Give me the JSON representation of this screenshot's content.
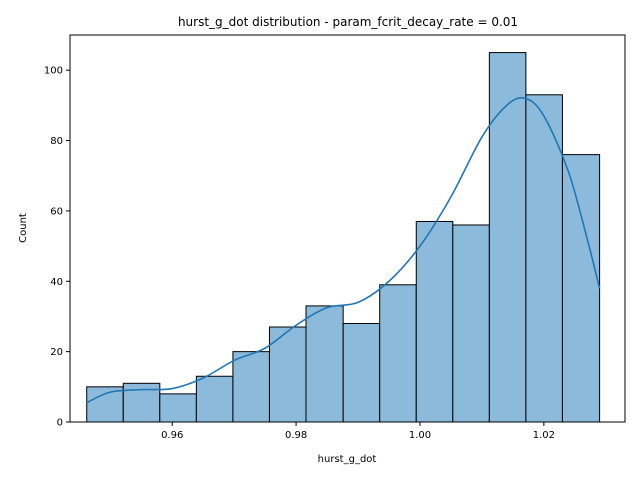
{
  "chart_data": {
    "type": "bar",
    "title": "hurst_g_dot distribution - param_fcrit_decay_rate = 0.01",
    "xlabel": "hurst_g_dot",
    "ylabel": "Count",
    "xlim": [
      0.9435,
      1.0331
    ],
    "ylim": [
      0,
      110
    ],
    "x_ticks": [
      0.96,
      0.98,
      1.0,
      1.02
    ],
    "x_tick_labels": [
      "0.96",
      "0.98",
      "1.00",
      "1.02"
    ],
    "y_ticks": [
      0,
      20,
      40,
      60,
      80,
      100
    ],
    "y_tick_labels": [
      "0",
      "20",
      "40",
      "60",
      "80",
      "100"
    ],
    "bin_edges": [
      0.9462,
      0.9521,
      0.958,
      0.9639,
      0.9698,
      0.9757,
      0.9816,
      0.9876,
      0.9935,
      0.9994,
      1.0053,
      1.0112,
      1.0171,
      1.023,
      1.029
    ],
    "values": [
      10,
      11,
      8,
      13,
      20,
      27,
      33,
      28,
      39,
      57,
      56,
      105,
      93,
      76
    ],
    "kde": {
      "x": [
        0.9462,
        0.95,
        0.955,
        0.96,
        0.965,
        0.97,
        0.975,
        0.98,
        0.985,
        0.99,
        0.995,
        1.0,
        1.005,
        1.01,
        1.014,
        1.017,
        1.02,
        1.024,
        1.027,
        1.029
      ],
      "y": [
        5.5,
        8.5,
        9.2,
        9.5,
        12.5,
        17.5,
        21,
        27.5,
        32.5,
        34,
        40,
        50,
        64,
        81,
        90,
        92,
        87,
        71,
        52,
        38
      ]
    },
    "bar_color": "#8cbadb",
    "bar_edge_color": "#000000",
    "kde_color": "#1f77b4",
    "grid": false,
    "legend": "none"
  }
}
